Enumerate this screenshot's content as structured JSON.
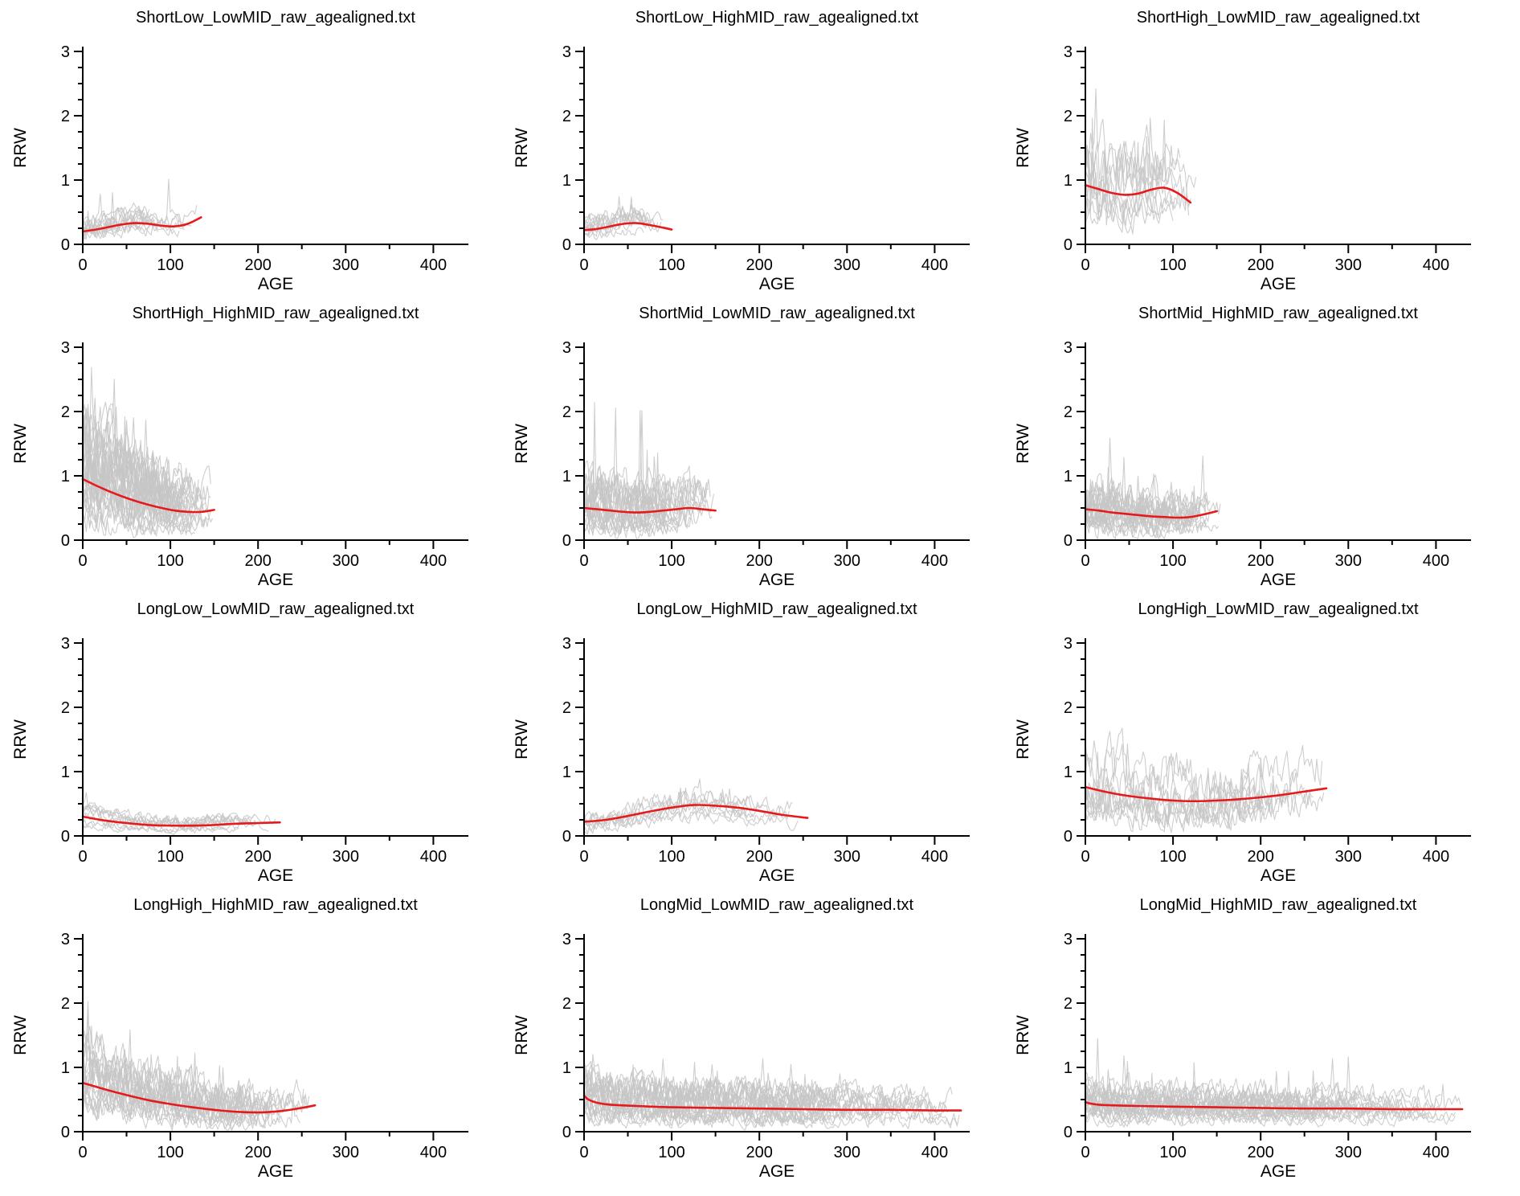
{
  "page": {
    "background": "#ffffff"
  },
  "chart_data": [
    {
      "type": "line",
      "title": "ShortLow_LowMID_raw_agealigned.txt",
      "xlabel": "AGE",
      "ylabel": "RRW",
      "xlim": [
        0,
        440
      ],
      "ylim": [
        0,
        3
      ],
      "x_ticks": [
        0,
        100,
        200,
        300,
        400
      ],
      "y_ticks": [
        0,
        1,
        2,
        3
      ],
      "x_minor_step": 50,
      "y_minor_step": 0.25,
      "series_color": "#c5c5c5",
      "smooth_color": "#e41a1c",
      "smooth": {
        "x": [
          0,
          15,
          30,
          45,
          60,
          75,
          90,
          105,
          120,
          135
        ],
        "y": [
          0.2,
          0.23,
          0.27,
          0.31,
          0.33,
          0.32,
          0.29,
          0.28,
          0.32,
          0.42
        ]
      },
      "raw": {
        "n": 12,
        "age_lo": 70,
        "age_hi": 140,
        "mult_min": 0.6,
        "mult_max": 1.5,
        "noise": 0.1,
        "damp": 0.25,
        "spike": 0.7,
        "spike_p": 0.012,
        "seed": 101
      }
    },
    {
      "type": "line",
      "title": "ShortLow_HighMID_raw_agealigned.txt",
      "xlabel": "AGE",
      "ylabel": "RRW",
      "xlim": [
        0,
        440
      ],
      "ylim": [
        0,
        3
      ],
      "x_ticks": [
        0,
        100,
        200,
        300,
        400
      ],
      "y_ticks": [
        0,
        1,
        2,
        3
      ],
      "x_minor_step": 50,
      "y_minor_step": 0.25,
      "series_color": "#c5c5c5",
      "smooth_color": "#e41a1c",
      "smooth": {
        "x": [
          0,
          15,
          30,
          45,
          60,
          75,
          90,
          100
        ],
        "y": [
          0.22,
          0.24,
          0.28,
          0.32,
          0.33,
          0.3,
          0.26,
          0.23
        ]
      },
      "raw": {
        "n": 10,
        "age_lo": 60,
        "age_hi": 100,
        "mult_min": 0.6,
        "mult_max": 1.5,
        "noise": 0.1,
        "damp": 0.25,
        "spike": 0.5,
        "spike_p": 0.012,
        "seed": 202
      }
    },
    {
      "type": "line",
      "title": "ShortHigh_LowMID_raw_agealigned.txt",
      "xlabel": "AGE",
      "ylabel": "RRW",
      "xlim": [
        0,
        440
      ],
      "ylim": [
        0,
        3
      ],
      "x_ticks": [
        0,
        100,
        200,
        300,
        400
      ],
      "y_ticks": [
        0,
        1,
        2,
        3
      ],
      "x_minor_step": 50,
      "y_minor_step": 0.25,
      "series_color": "#c5c5c5",
      "smooth_color": "#e41a1c",
      "smooth": {
        "x": [
          0,
          15,
          30,
          45,
          60,
          75,
          90,
          105,
          120
        ],
        "y": [
          0.92,
          0.86,
          0.8,
          0.77,
          0.79,
          0.85,
          0.88,
          0.8,
          0.65
        ]
      },
      "raw": {
        "n": 10,
        "age_lo": 80,
        "age_hi": 130,
        "mult_min": 0.5,
        "mult_max": 1.6,
        "noise": 0.28,
        "damp": 0.3,
        "spike": 1.2,
        "spike_p": 0.02,
        "seed": 303
      }
    },
    {
      "type": "line",
      "title": "ShortHigh_HighMID_raw_agealigned.txt",
      "xlabel": "AGE",
      "ylabel": "RRW",
      "xlim": [
        0,
        440
      ],
      "ylim": [
        0,
        3
      ],
      "x_ticks": [
        0,
        100,
        200,
        300,
        400
      ],
      "y_ticks": [
        0,
        1,
        2,
        3
      ],
      "x_minor_step": 50,
      "y_minor_step": 0.25,
      "series_color": "#c5c5c5",
      "smooth_color": "#e41a1c",
      "smooth": {
        "x": [
          0,
          15,
          30,
          45,
          60,
          75,
          90,
          105,
          120,
          135,
          150
        ],
        "y": [
          0.95,
          0.85,
          0.76,
          0.68,
          0.61,
          0.55,
          0.5,
          0.46,
          0.44,
          0.44,
          0.47
        ]
      },
      "raw": {
        "n": 30,
        "age_lo": 80,
        "age_hi": 150,
        "mult_min": 0.4,
        "mult_max": 1.8,
        "noise": 0.3,
        "damp": 0.55,
        "spike": 1.0,
        "spike_p": 0.015,
        "seed": 404
      }
    },
    {
      "type": "line",
      "title": "ShortMid_LowMID_raw_agealigned.txt",
      "xlabel": "AGE",
      "ylabel": "RRW",
      "xlim": [
        0,
        440
      ],
      "ylim": [
        0,
        3
      ],
      "x_ticks": [
        0,
        100,
        200,
        300,
        400
      ],
      "y_ticks": [
        0,
        1,
        2,
        3
      ],
      "x_minor_step": 50,
      "y_minor_step": 0.25,
      "series_color": "#c5c5c5",
      "smooth_color": "#e41a1c",
      "smooth": {
        "x": [
          0,
          15,
          30,
          45,
          60,
          75,
          90,
          105,
          120,
          135,
          150
        ],
        "y": [
          0.5,
          0.48,
          0.46,
          0.44,
          0.43,
          0.44,
          0.46,
          0.48,
          0.5,
          0.48,
          0.46
        ]
      },
      "raw": {
        "n": 22,
        "age_lo": 90,
        "age_hi": 150,
        "mult_min": 0.5,
        "mult_max": 1.7,
        "noise": 0.22,
        "damp": 0.35,
        "spike": 1.8,
        "spike_p": 0.01,
        "seed": 505
      }
    },
    {
      "type": "line",
      "title": "ShortMid_HighMID_raw_agealigned.txt",
      "xlabel": "AGE",
      "ylabel": "RRW",
      "xlim": [
        0,
        440
      ],
      "ylim": [
        0,
        3
      ],
      "x_ticks": [
        0,
        100,
        200,
        300,
        400
      ],
      "y_ticks": [
        0,
        1,
        2,
        3
      ],
      "x_minor_step": 50,
      "y_minor_step": 0.25,
      "series_color": "#c5c5c5",
      "smooth_color": "#e41a1c",
      "smooth": {
        "x": [
          0,
          15,
          30,
          45,
          60,
          75,
          90,
          105,
          120,
          135,
          150
        ],
        "y": [
          0.48,
          0.46,
          0.43,
          0.41,
          0.39,
          0.37,
          0.36,
          0.35,
          0.36,
          0.4,
          0.45
        ]
      },
      "raw": {
        "n": 22,
        "age_lo": 90,
        "age_hi": 155,
        "mult_min": 0.5,
        "mult_max": 1.6,
        "noise": 0.2,
        "damp": 0.4,
        "spike": 0.9,
        "spike_p": 0.012,
        "seed": 606
      }
    },
    {
      "type": "line",
      "title": "LongLow_LowMID_raw_agealigned.txt",
      "xlabel": "AGE",
      "ylabel": "RRW",
      "xlim": [
        0,
        440
      ],
      "ylim": [
        0,
        3
      ],
      "x_ticks": [
        0,
        100,
        200,
        300,
        400
      ],
      "y_ticks": [
        0,
        1,
        2,
        3
      ],
      "x_minor_step": 50,
      "y_minor_step": 0.25,
      "series_color": "#c5c5c5",
      "smooth_color": "#e41a1c",
      "smooth": {
        "x": [
          0,
          25,
          50,
          75,
          100,
          125,
          150,
          175,
          200,
          225
        ],
        "y": [
          0.3,
          0.24,
          0.2,
          0.17,
          0.16,
          0.16,
          0.17,
          0.19,
          0.2,
          0.21
        ]
      },
      "raw": {
        "n": 10,
        "age_lo": 150,
        "age_hi": 230,
        "mult_min": 0.6,
        "mult_max": 1.5,
        "noise": 0.06,
        "damp": 0.2,
        "spike": 0.25,
        "spike_p": 0.01,
        "seed": 707
      }
    },
    {
      "type": "line",
      "title": "LongLow_HighMID_raw_agealigned.txt",
      "xlabel": "AGE",
      "ylabel": "RRW",
      "xlim": [
        0,
        440
      ],
      "ylim": [
        0,
        3
      ],
      "x_ticks": [
        0,
        100,
        200,
        300,
        400
      ],
      "y_ticks": [
        0,
        1,
        2,
        3
      ],
      "x_minor_step": 50,
      "y_minor_step": 0.25,
      "series_color": "#c5c5c5",
      "smooth_color": "#e41a1c",
      "smooth": {
        "x": [
          0,
          25,
          50,
          75,
          100,
          125,
          150,
          175,
          200,
          225,
          255
        ],
        "y": [
          0.22,
          0.25,
          0.31,
          0.38,
          0.44,
          0.48,
          0.47,
          0.44,
          0.39,
          0.33,
          0.28
        ]
      },
      "raw": {
        "n": 8,
        "age_lo": 180,
        "age_hi": 260,
        "mult_min": 0.6,
        "mult_max": 1.4,
        "noise": 0.09,
        "damp": 0.2,
        "spike": 0.35,
        "spike_p": 0.01,
        "seed": 808
      }
    },
    {
      "type": "line",
      "title": "LongHigh_LowMID_raw_agealigned.txt",
      "xlabel": "AGE",
      "ylabel": "RRW",
      "xlim": [
        0,
        440
      ],
      "ylim": [
        0,
        3
      ],
      "x_ticks": [
        0,
        100,
        200,
        300,
        400
      ],
      "y_ticks": [
        0,
        1,
        2,
        3
      ],
      "x_minor_step": 50,
      "y_minor_step": 0.25,
      "series_color": "#c5c5c5",
      "smooth_color": "#e41a1c",
      "smooth": {
        "x": [
          0,
          25,
          50,
          75,
          100,
          125,
          150,
          175,
          200,
          225,
          250,
          275
        ],
        "y": [
          0.76,
          0.68,
          0.62,
          0.58,
          0.55,
          0.54,
          0.55,
          0.57,
          0.6,
          0.64,
          0.69,
          0.74
        ]
      },
      "raw": {
        "n": 10,
        "age_lo": 190,
        "age_hi": 280,
        "mult_min": 0.5,
        "mult_max": 1.6,
        "noise": 0.25,
        "damp": 0.3,
        "spike": 0.9,
        "spike_p": 0.015,
        "seed": 909
      }
    },
    {
      "type": "line",
      "title": "LongHigh_HighMID_raw_agealigned.txt",
      "xlabel": "AGE",
      "ylabel": "RRW",
      "xlim": [
        0,
        440
      ],
      "ylim": [
        0,
        3
      ],
      "x_ticks": [
        0,
        100,
        200,
        300,
        400
      ],
      "y_ticks": [
        0,
        1,
        2,
        3
      ],
      "x_minor_step": 50,
      "y_minor_step": 0.25,
      "series_color": "#c5c5c5",
      "smooth_color": "#e41a1c",
      "smooth": {
        "x": [
          0,
          25,
          50,
          75,
          100,
          125,
          150,
          175,
          200,
          225,
          250,
          265
        ],
        "y": [
          0.76,
          0.66,
          0.57,
          0.49,
          0.43,
          0.38,
          0.34,
          0.31,
          0.3,
          0.32,
          0.37,
          0.41
        ]
      },
      "raw": {
        "n": 20,
        "age_lo": 170,
        "age_hi": 270,
        "mult_min": 0.5,
        "mult_max": 1.7,
        "noise": 0.22,
        "damp": 0.5,
        "spike": 1.0,
        "spike_p": 0.012,
        "seed": 1010
      }
    },
    {
      "type": "line",
      "title": "LongMid_LowMID_raw_agealigned.txt",
      "xlabel": "AGE",
      "ylabel": "RRW",
      "xlim": [
        0,
        440
      ],
      "ylim": [
        0,
        3
      ],
      "x_ticks": [
        0,
        100,
        200,
        300,
        400
      ],
      "y_ticks": [
        0,
        1,
        2,
        3
      ],
      "x_minor_step": 50,
      "y_minor_step": 0.25,
      "series_color": "#c5c5c5",
      "smooth_color": "#e41a1c",
      "smooth": {
        "x": [
          0,
          5,
          15,
          30,
          60,
          100,
          150,
          200,
          250,
          300,
          350,
          400,
          430
        ],
        "y": [
          0.56,
          0.5,
          0.45,
          0.42,
          0.4,
          0.38,
          0.37,
          0.36,
          0.35,
          0.34,
          0.34,
          0.33,
          0.33
        ]
      },
      "raw": {
        "n": 24,
        "age_lo": 250,
        "age_hi": 430,
        "mult_min": 0.5,
        "mult_max": 1.7,
        "noise": 0.14,
        "damp": 0.3,
        "spike": 0.7,
        "spike_p": 0.008,
        "seed": 1111
      }
    },
    {
      "type": "line",
      "title": "LongMid_HighMID_raw_agealigned.txt",
      "xlabel": "AGE",
      "ylabel": "RRW",
      "xlim": [
        0,
        440
      ],
      "ylim": [
        0,
        3
      ],
      "x_ticks": [
        0,
        100,
        200,
        300,
        400
      ],
      "y_ticks": [
        0,
        1,
        2,
        3
      ],
      "x_minor_step": 50,
      "y_minor_step": 0.25,
      "series_color": "#c5c5c5",
      "smooth_color": "#e41a1c",
      "smooth": {
        "x": [
          0,
          5,
          15,
          30,
          60,
          100,
          150,
          200,
          250,
          300,
          350,
          400,
          430
        ],
        "y": [
          0.46,
          0.44,
          0.42,
          0.41,
          0.4,
          0.39,
          0.38,
          0.37,
          0.36,
          0.36,
          0.35,
          0.35,
          0.35
        ]
      },
      "raw": {
        "n": 24,
        "age_lo": 250,
        "age_hi": 430,
        "mult_min": 0.5,
        "mult_max": 1.6,
        "noise": 0.12,
        "damp": 0.3,
        "spike": 0.8,
        "spike_p": 0.008,
        "seed": 1212
      }
    }
  ]
}
